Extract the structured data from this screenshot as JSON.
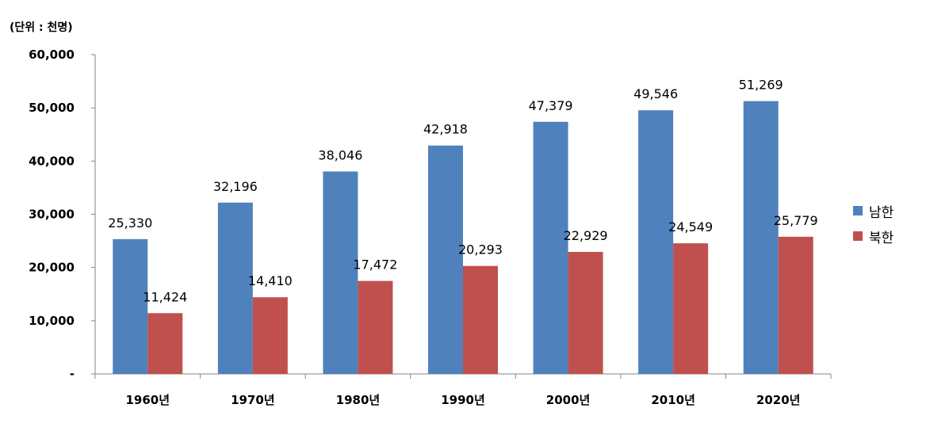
{
  "chart_data": {
    "type": "bar",
    "unit_label": "(단위 : 천명)",
    "categories": [
      "1960년",
      "1970년",
      "1980년",
      "1990년",
      "2000년",
      "2010년",
      "2020년"
    ],
    "series": [
      {
        "name": "남한",
        "color": "#4F81BD",
        "values": [
          25330,
          32196,
          38046,
          42918,
          47379,
          49546,
          51269
        ]
      },
      {
        "name": "북한",
        "color": "#C0504D",
        "values": [
          11424,
          14410,
          17472,
          20293,
          22929,
          24549,
          25779
        ]
      }
    ],
    "ylim": [
      0,
      60000
    ],
    "yticks": [
      0,
      10000,
      20000,
      30000,
      40000,
      50000,
      60000
    ],
    "ytick_labels": [
      "-",
      "10,000",
      "20,000",
      "30,000",
      "40,000",
      "50,000",
      "60,000"
    ],
    "data_labels": [
      [
        "25,330",
        "32,196",
        "38,046",
        "42,918",
        "47,379",
        "49,546",
        "51,269"
      ],
      [
        "11,424",
        "14,410",
        "17,472",
        "20,293",
        "22,929",
        "24,549",
        "25,779"
      ]
    ],
    "legend_position": "right",
    "grid": false
  }
}
